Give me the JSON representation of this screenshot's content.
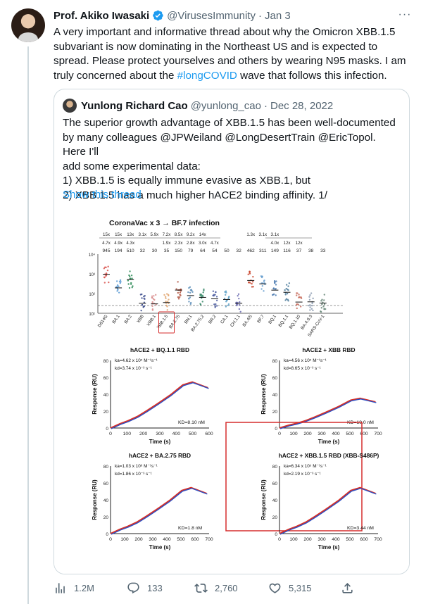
{
  "tweet": {
    "author": {
      "name": "Prof. Akiko Iwasaki",
      "handle": "@VirusesImmunity",
      "dot": "·",
      "date": "Jan 3"
    },
    "text_before": "A very important and informative thread about why the Omicron XBB.1.5 subvariant is now dominating in the Northeast US and is expected to spread. Please protect yourselves and others by wearing N95 masks. I am truly concerned about the ",
    "hashtag": "#longCOVID",
    "text_after": " wave that follows this infection.",
    "more_icon": "···"
  },
  "quote": {
    "author": {
      "name": "Yunlong Richard Cao",
      "handle": "@yunlong_cao",
      "dot": "·",
      "date": "Dec 28, 2022"
    },
    "lines": [
      "The superior growth advantage of XBB.1.5 has been well-documented",
      "by many colleagues @JPWeiland @LongDesertTrain @EricTopol. Here I'll",
      "add some experimental data:",
      "1)  XBB.1.5 is equally immune evasive as XBB.1, but",
      "2) XBB.1.5 has a much higher hACE2 binding affinity. 1/"
    ],
    "show_thread": "Show this thread"
  },
  "figure": {
    "top_title": "CoronaVac x 3 → BF.7 infection",
    "fold_row1": [
      "15x",
      "15x",
      "13x",
      "3.1x",
      "5.9x",
      "7.2x",
      "8.5x",
      "9.2x",
      "14x",
      "",
      "",
      "",
      "1.3x",
      "3.1x",
      "3.1x",
      "",
      "",
      ""
    ],
    "fold_row2": [
      "4.7x",
      "4.9x",
      "4.3x",
      "",
      "",
      "1.9x",
      "2.3x",
      "2.8x",
      "3.0x",
      "4.7x",
      "",
      "",
      "",
      "",
      "4.0x",
      "12x",
      "12x",
      ""
    ],
    "titers": [
      "945",
      "194",
      "510",
      "32",
      "30",
      "35",
      "150",
      "79",
      "64",
      "54",
      "50",
      "32",
      "462",
      "311",
      "149",
      "116",
      "37",
      "38",
      "33"
    ],
    "x_labels": [
      "D614G",
      "BA.1",
      "BA.2",
      "XBB",
      "XBB.1",
      "XBB.1.5",
      "BA.2.75",
      "BN.1",
      "BA.2.75.2",
      "BR.2",
      "CA.1",
      "CH.1.1",
      "BA.4/5",
      "BF.7",
      "BQ.1",
      "BQ.1.1",
      "BQ.1.10",
      "BA.4.6.3",
      "SARS-CoV-1"
    ],
    "y_ticks": [
      "10⁴",
      "10³",
      "10²",
      "10¹"
    ],
    "spr_panels": [
      {
        "title": "hACE2 + BQ.1.1 RBD",
        "ka": "ka=4.62 x 10⁵ M⁻¹s⁻¹",
        "kd": "kd=3.74 x 10⁻³ s⁻¹",
        "KD": "KD=8.10 nM",
        "x_ticks": [
          "0",
          "100",
          "200",
          "300",
          "400",
          "500",
          "600"
        ]
      },
      {
        "title": "hACE2 + XBB RBD",
        "ka": "ka=4.56 x 10⁵ M⁻¹s⁻¹",
        "kd": "kd=8.65 x 10⁻³ s⁻¹",
        "KD": "KD=19.0 nM",
        "x_ticks": [
          "0",
          "100",
          "200",
          "300",
          "400",
          "500",
          "600",
          "700"
        ]
      },
      {
        "title": "hACE2 + BA.2.75 RBD",
        "ka": "ka=1.03 x 10⁶ M⁻¹s⁻¹",
        "kd": "kd=1.86 x 10⁻³ s⁻¹",
        "KD": "KD=1.8 nM",
        "x_ticks": [
          "0",
          "100",
          "200",
          "300",
          "400",
          "500",
          "600",
          "700"
        ]
      },
      {
        "title": "hACE2 + XBB.1.5 RBD (XBB-S486P)",
        "ka": "ka=6.34 x 10⁵ M⁻¹s⁻¹",
        "kd": "kd=2.19 x 10⁻³ s⁻¹",
        "KD": "KD=3.44 nM",
        "x_ticks": [
          "0",
          "100",
          "200",
          "300",
          "400",
          "500",
          "600",
          "700"
        ]
      }
    ],
    "spr_xlabel": "Time (s)",
    "spr_ylabel": "Response (RU)",
    "spr_yticks": [
      "80",
      "60",
      "40",
      "20",
      "0"
    ]
  },
  "actions": {
    "views": "1.2M",
    "replies": "133",
    "retweets": "2,760",
    "likes": "5,315"
  },
  "colors": {
    "accent": "#1d9bf0",
    "muted": "#536471",
    "border": "#cfd9de",
    "highlight_box": "#d62d2d"
  }
}
